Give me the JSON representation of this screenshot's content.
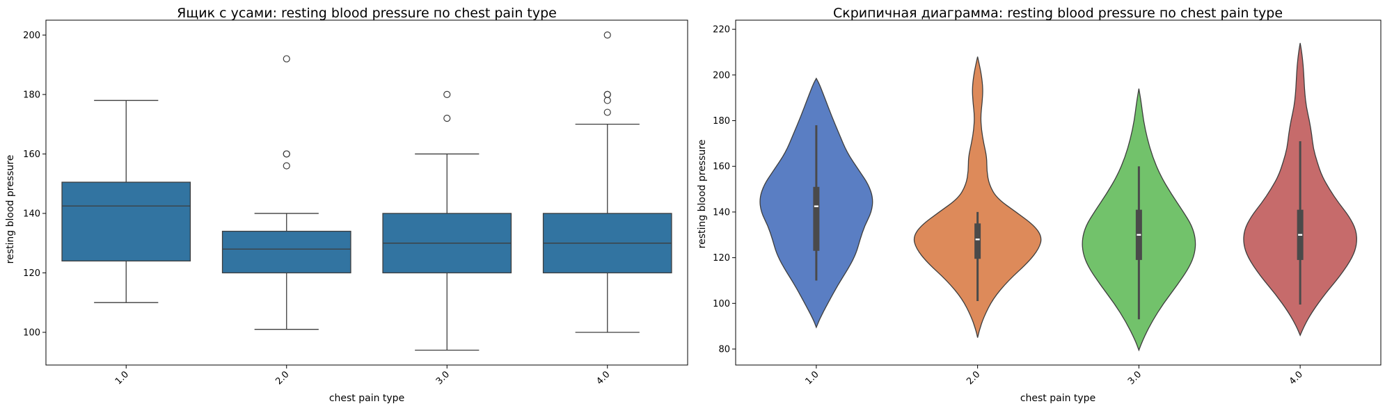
{
  "chart_data": [
    {
      "type": "box",
      "title": "Ящик с усами: resting blood pressure по chest pain type",
      "xlabel": "chest pain type",
      "ylabel": "resting blood pressure",
      "categories": [
        "1.0",
        "2.0",
        "3.0",
        "4.0"
      ],
      "ylim": [
        89,
        205
      ],
      "yticks": [
        100,
        120,
        140,
        160,
        180,
        200
      ],
      "color": "#3274a1",
      "boxes": [
        {
          "category": "1.0",
          "whisker_low": 110,
          "q1": 124,
          "median": 142.5,
          "q3": 150.5,
          "whisker_high": 178,
          "outliers": []
        },
        {
          "category": "2.0",
          "whisker_low": 101,
          "q1": 120,
          "median": 128,
          "q3": 134,
          "whisker_high": 140,
          "outliers": [
            156,
            160,
            160,
            192
          ]
        },
        {
          "category": "3.0",
          "whisker_low": 94,
          "q1": 120,
          "median": 130,
          "q3": 140,
          "whisker_high": 160,
          "outliers": [
            172,
            180
          ]
        },
        {
          "category": "4.0",
          "whisker_low": 100,
          "q1": 120,
          "median": 130,
          "q3": 140,
          "whisker_high": 170,
          "outliers": [
            174,
            178,
            180,
            180,
            200
          ]
        }
      ]
    },
    {
      "type": "violin",
      "title": "Скрипичная диаграмма: resting blood pressure по chest pain type",
      "xlabel": "chest pain type",
      "ylabel": "resting blood pressure",
      "categories": [
        "1.0",
        "2.0",
        "3.0",
        "4.0"
      ],
      "ylim": [
        73,
        224
      ],
      "yticks": [
        80,
        100,
        120,
        140,
        160,
        180,
        200,
        220
      ],
      "colors": [
        "#5a7ec3",
        "#dd8a5a",
        "#72c26b",
        "#c66b6b"
      ],
      "violins": [
        {
          "category": "1.0",
          "min": 89.5,
          "max": 198.5,
          "whisker_low": 110,
          "q1": 123,
          "median": 142.5,
          "q3": 151,
          "whisker_high": 178,
          "profile": [
            [
              89.5,
              0
            ],
            [
              93,
              0.04
            ],
            [
              100,
              0.15
            ],
            [
              108,
              0.28
            ],
            [
              116,
              0.43
            ],
            [
              122,
              0.52
            ],
            [
              128,
              0.57
            ],
            [
              134,
              0.63
            ],
            [
              140,
              0.72
            ],
            [
              146,
              0.74
            ],
            [
              152,
              0.68
            ],
            [
              158,
              0.56
            ],
            [
              166,
              0.4
            ],
            [
              174,
              0.3
            ],
            [
              182,
              0.2
            ],
            [
              190,
              0.11
            ],
            [
              196,
              0.04
            ],
            [
              198.5,
              0
            ]
          ]
        },
        {
          "category": "2.0",
          "min": 85,
          "max": 208,
          "whisker_low": 101,
          "q1": 119.5,
          "median": 128,
          "q3": 135,
          "whisker_high": 140,
          "profile": [
            [
              85,
              0
            ],
            [
              88,
              0.02
            ],
            [
              94,
              0.08
            ],
            [
              102,
              0.2
            ],
            [
              110,
              0.4
            ],
            [
              118,
              0.66
            ],
            [
              124,
              0.8
            ],
            [
              129,
              0.84
            ],
            [
              134,
              0.74
            ],
            [
              140,
              0.5
            ],
            [
              146,
              0.25
            ],
            [
              152,
              0.15
            ],
            [
              158,
              0.12
            ],
            [
              164,
              0.12
            ],
            [
              170,
              0.08
            ],
            [
              176,
              0.05
            ],
            [
              182,
              0.04
            ],
            [
              188,
              0.06
            ],
            [
              194,
              0.07
            ],
            [
              200,
              0.05
            ],
            [
              205,
              0.02
            ],
            [
              208,
              0
            ]
          ]
        },
        {
          "category": "3.0",
          "min": 79.5,
          "max": 194,
          "whisker_low": 93,
          "q1": 119,
          "median": 130,
          "q3": 141,
          "whisker_high": 160,
          "profile": [
            [
              79.5,
              0
            ],
            [
              84,
              0.05
            ],
            [
              92,
              0.17
            ],
            [
              100,
              0.32
            ],
            [
              108,
              0.5
            ],
            [
              116,
              0.66
            ],
            [
              122,
              0.73
            ],
            [
              128,
              0.74
            ],
            [
              134,
              0.69
            ],
            [
              140,
              0.58
            ],
            [
              148,
              0.42
            ],
            [
              156,
              0.28
            ],
            [
              164,
              0.18
            ],
            [
              172,
              0.11
            ],
            [
              180,
              0.06
            ],
            [
              188,
              0.03
            ],
            [
              194,
              0
            ]
          ]
        },
        {
          "category": "4.0",
          "min": 86,
          "max": 214,
          "whisker_low": 99.5,
          "q1": 119,
          "median": 130,
          "q3": 141,
          "whisker_high": 171,
          "profile": [
            [
              86,
              0
            ],
            [
              90,
              0.05
            ],
            [
              96,
              0.15
            ],
            [
              104,
              0.32
            ],
            [
              112,
              0.52
            ],
            [
              120,
              0.68
            ],
            [
              126,
              0.74
            ],
            [
              132,
              0.73
            ],
            [
              138,
              0.64
            ],
            [
              144,
              0.5
            ],
            [
              150,
              0.38
            ],
            [
              156,
              0.28
            ],
            [
              162,
              0.22
            ],
            [
              168,
              0.17
            ],
            [
              174,
              0.15
            ],
            [
              180,
              0.12
            ],
            [
              186,
              0.08
            ],
            [
              192,
              0.06
            ],
            [
              198,
              0.05
            ],
            [
              204,
              0.04
            ],
            [
              210,
              0.02
            ],
            [
              214,
              0
            ]
          ]
        }
      ]
    }
  ]
}
